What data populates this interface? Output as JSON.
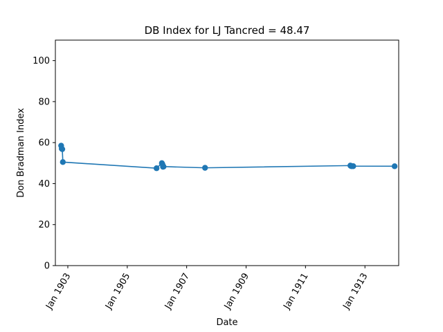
{
  "chart_data": {
    "type": "line",
    "title": "DB Index for LJ Tancred = 48.47",
    "xlabel": "Date",
    "ylabel": "Don Bradman Index",
    "ylim": [
      0,
      110
    ],
    "xlim": [
      "1902-08-01",
      "1914-02-20"
    ],
    "grid": false,
    "legend": "none",
    "series_color": "#1f77b4",
    "x_ticks": [
      {
        "date": "1903-01-01",
        "label": "Jan 1903"
      },
      {
        "date": "1905-01-01",
        "label": "Jan 1905"
      },
      {
        "date": "1907-01-01",
        "label": "Jan 1907"
      },
      {
        "date": "1909-01-01",
        "label": "Jan 1909"
      },
      {
        "date": "1911-01-01",
        "label": "Jan 1911"
      },
      {
        "date": "1913-01-01",
        "label": "Jan 1913"
      }
    ],
    "y_ticks": [
      0,
      20,
      40,
      60,
      80,
      100
    ],
    "points": [
      {
        "x": "1902-10-11",
        "y": 58.5
      },
      {
        "x": "1902-10-18",
        "y": 57.0
      },
      {
        "x": "1902-10-25",
        "y": 56.8
      },
      {
        "x": "1902-11-01",
        "y": 50.5
      },
      {
        "x": "1905-12-27",
        "y": 47.5
      },
      {
        "x": "1906-03-02",
        "y": 50.0
      },
      {
        "x": "1906-03-09",
        "y": 49.5
      },
      {
        "x": "1906-03-16",
        "y": 48.2
      },
      {
        "x": "1906-03-23",
        "y": 48.3
      },
      {
        "x": "1907-08-15",
        "y": 47.7
      },
      {
        "x": "1912-07-06",
        "y": 48.8
      },
      {
        "x": "1912-07-13",
        "y": 48.6
      },
      {
        "x": "1912-07-20",
        "y": 48.5
      },
      {
        "x": "1912-08-10",
        "y": 48.5
      },
      {
        "x": "1914-01-01",
        "y": 48.47
      }
    ]
  }
}
